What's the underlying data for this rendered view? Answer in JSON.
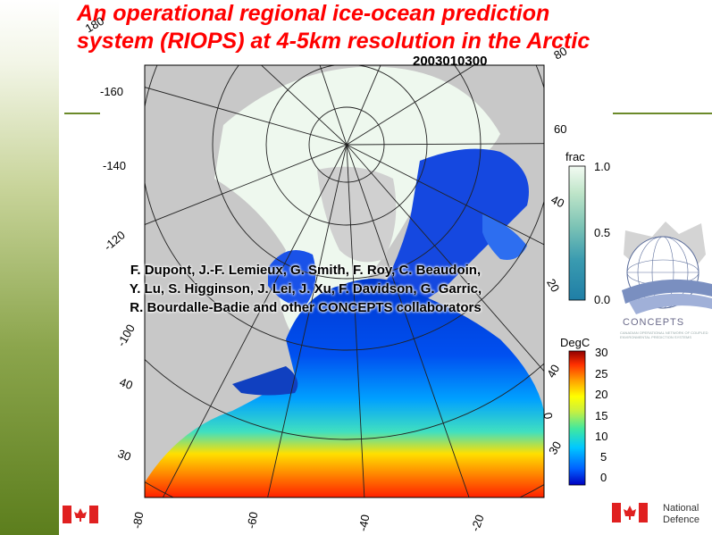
{
  "slide": {
    "title_line1": "An operational regional ice-ocean prediction",
    "title_line2": "system (RIOPS) at 4-5km resolution in the Arctic",
    "timestamp": "2003010300",
    "credits": [
      "F. Dupont, J.-F. Lemieux, G. Smith, F. Roy, C. Beaudoin,",
      "Y. Lu, S. Higginson, J. Lei, J. Xu, F. Davidson, G. Garric,",
      "R. Bourdalle-Badie and other CONCEPTS collaborators"
    ]
  },
  "ice_colorbar": {
    "title": "frac",
    "ticks": [
      "1.0",
      "0.5",
      "0.0"
    ],
    "colors": [
      "#f3fbf3",
      "#bfe5c9",
      "#7cc3b5",
      "#3a9bb0",
      "#1f7ea6"
    ]
  },
  "sst_colorbar": {
    "title": "DegC",
    "ticks": [
      "30",
      "25",
      "20",
      "15",
      "10",
      "5",
      "0"
    ],
    "colors": [
      "#0000c0",
      "#0050ff",
      "#00b0ff",
      "#30e0c0",
      "#a0f060",
      "#ffff00",
      "#ffb000",
      "#ff5000",
      "#d00000",
      "#800000"
    ]
  },
  "map_labels": {
    "lon_top": [
      "180",
      "160",
      "140",
      "120"
    ],
    "lon_left": [
      "-160",
      "-140",
      "-120",
      "-100"
    ],
    "lat_left": [
      "40",
      "30"
    ],
    "lon_bottom": [
      "-80",
      "-60",
      "-40",
      "-20"
    ],
    "right": [
      "80",
      "60",
      "40",
      "20",
      "40",
      "0",
      "30"
    ]
  },
  "logos": {
    "concepts_name": "CONCEPTS",
    "concepts_sub": "CANADIAN OPERATIONAL NETWORK OF COUPLED ENVIRONMENTAL PREDICTION SYSTEMS",
    "national_defence_line1": "National",
    "national_defence_line2": "Defence"
  },
  "colors": {
    "title": "#ff0000",
    "land": "#c8c8c8",
    "sidebar_green": "#5c7e1d"
  }
}
